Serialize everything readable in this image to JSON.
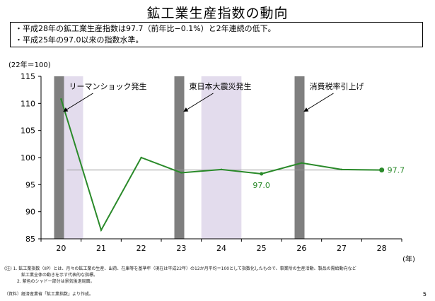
{
  "header": {
    "title": "鉱工業生産指数の動向"
  },
  "summary": [
    "・平成28年の鉱工業生産指数は97.7（前年比−0.1%）と2年連続の低下。",
    "・平成25年の97.0以来の指数水準。"
  ],
  "chart_data": {
    "type": "line",
    "title": "",
    "unit_label": "(22年＝100)",
    "xlabel": "(年)",
    "ylabel": "",
    "categories": [
      "20",
      "21",
      "22",
      "23",
      "24",
      "25",
      "26",
      "27",
      "28"
    ],
    "values": [
      110.8,
      86.6,
      100.0,
      97.2,
      97.8,
      97.0,
      99.0,
      97.8,
      97.7
    ],
    "ylim": [
      85,
      115
    ],
    "yticks": [
      85,
      90,
      95,
      100,
      105,
      110,
      115
    ],
    "reference_line": 97.7,
    "series_color": "#2a8a2a",
    "shade_color": "#e3dced",
    "event_bar_color": "#7f7f7f",
    "shaded_ranges": [
      [
        -0.05,
        0.55
      ],
      [
        3.5,
        4.5
      ]
    ],
    "event_positions": [
      -0.05,
      2.95,
      5.95
    ],
    "data_labels": [
      {
        "index": 5,
        "text": "97.0",
        "position": "below"
      },
      {
        "index": 8,
        "text": "97.7",
        "position": "right"
      }
    ],
    "annotations": [
      {
        "text": "リーマンショック発生",
        "event": 0
      },
      {
        "text": "東日本大震災発生",
        "event": 1
      },
      {
        "text": "消費税率引上げ",
        "event": 2
      }
    ],
    "grid": false
  },
  "notes": [
    "(注) 1. 鉱工業指数（IIP）とは、月々の鉱工業の生産、出荷、在庫等を基準年（現在は平成22年）の12か月平均＝100として指数化したもので、事業所の生産活動、製品の需給動向など",
    "　　　　鉱工業全体の動きを示す代表的な指標。",
    "　　　2. 紫色のシャドー部分は景気後退局面。"
  ],
  "source": "（資料）経済産業省「鉱工業指数」より作成。",
  "page_number": "5"
}
